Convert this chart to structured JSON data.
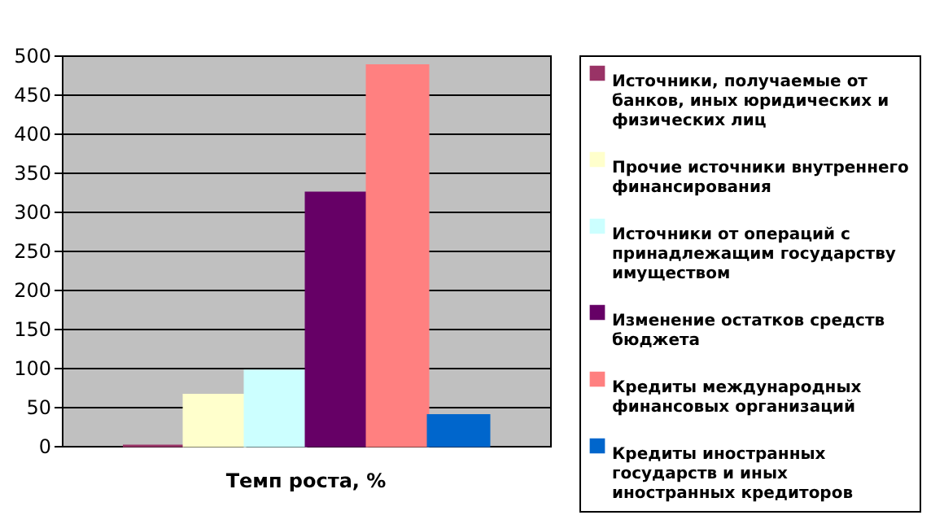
{
  "chart_data": {
    "type": "bar",
    "categories": [
      "Темп роста, %"
    ],
    "series": [
      {
        "name": "Источники, получаемые от банков, иных юридических и физических лиц",
        "color": "#993366",
        "values": [
          0
        ]
      },
      {
        "name": "Прочие источники внутреннего финансирования",
        "color": "#ffffcc",
        "values": [
          65
        ]
      },
      {
        "name": "Источники от операций с принадлежащим государству имуществом",
        "color": "#ccffff",
        "values": [
          96
        ]
      },
      {
        "name": "Изменение остатков средств бюджета",
        "color": "#660066",
        "values": [
          324
        ]
      },
      {
        "name": "Кредиты международных финансовых организаций",
        "color": "#ff8080",
        "values": [
          487
        ]
      },
      {
        "name": "Кредиты иностранных государств и иных иностранных кредиторов",
        "color": "#0066cc",
        "values": [
          39
        ]
      }
    ],
    "ylim": [
      0,
      500
    ],
    "yticks": [
      0,
      50,
      100,
      150,
      200,
      250,
      300,
      350,
      400,
      450,
      500
    ],
    "grid": "y",
    "legend": "right"
  }
}
